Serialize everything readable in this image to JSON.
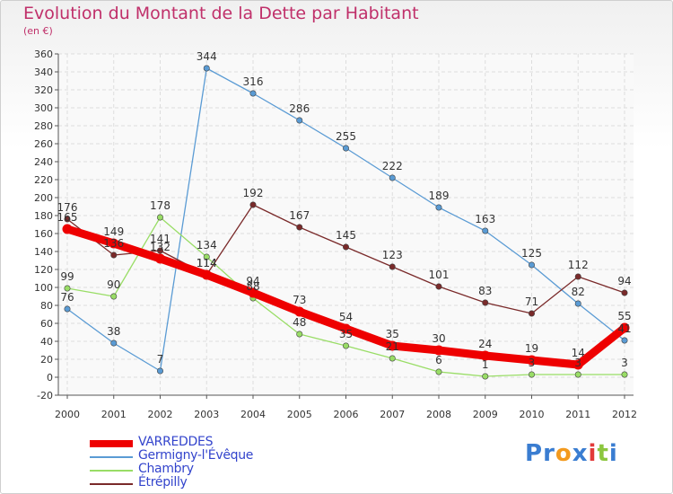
{
  "title": "Evolution du Montant de la Dette par Habitant",
  "subtitle": "(en €)",
  "logo": {
    "letters": [
      "P",
      "r",
      "o",
      "x",
      "i",
      "t",
      "i"
    ],
    "colors": [
      "#3a7dd1",
      "#3a7dd1",
      "#f39a1e",
      "#3a7dd1",
      "#e23a3a",
      "#8cc63f",
      "#3a7dd1"
    ]
  },
  "chart_data": {
    "type": "line",
    "x": [
      "2000",
      "2001",
      "2002",
      "2003",
      "2004",
      "2005",
      "2006",
      "2007",
      "2008",
      "2009",
      "2010",
      "2011",
      "2012"
    ],
    "ylim": [
      -20,
      360
    ],
    "yticks": [
      -20,
      0,
      20,
      40,
      60,
      80,
      100,
      120,
      140,
      160,
      180,
      200,
      220,
      240,
      260,
      280,
      300,
      320,
      340,
      360
    ],
    "grid": true,
    "legend_position": "bottom-left",
    "series": [
      {
        "name": "VARREDDES",
        "color": "#ee0000",
        "values": [
          165,
          149,
          132,
          114,
          94,
          73,
          54,
          35,
          30,
          24,
          19,
          14,
          55
        ],
        "labels": [
          "165",
          "149",
          "132",
          "114",
          "94",
          "73",
          "54",
          "35",
          "30",
          "24",
          "19",
          "14",
          "55"
        ]
      },
      {
        "name": "Germigny-l'Évêque",
        "color": "#5a9bd4",
        "values": [
          76,
          38,
          7,
          344,
          316,
          286,
          255,
          222,
          189,
          163,
          125,
          82,
          41
        ],
        "labels": [
          "76",
          "38",
          "7",
          "344",
          "316",
          "286",
          "255",
          "222",
          "189",
          "163",
          "125",
          "82",
          "41"
        ]
      },
      {
        "name": "Chambry",
        "color": "#99dd66",
        "values": [
          99,
          90,
          178,
          134,
          88,
          48,
          35,
          21,
          6,
          1,
          3,
          3,
          3
        ],
        "labels": [
          "99",
          "90",
          "178",
          "134",
          "88",
          "48",
          "35",
          "21",
          "6",
          "1",
          "3",
          "3",
          "3"
        ]
      },
      {
        "name": "Étrépilly",
        "color": "#7a2a2a",
        "values": [
          176,
          136,
          141,
          114,
          192,
          167,
          145,
          123,
          101,
          83,
          71,
          112,
          94
        ],
        "labels": [
          "176",
          "136",
          "141",
          "114",
          "192",
          "167",
          "145",
          "123",
          "101",
          "83",
          "71",
          "112",
          "94"
        ]
      }
    ]
  }
}
